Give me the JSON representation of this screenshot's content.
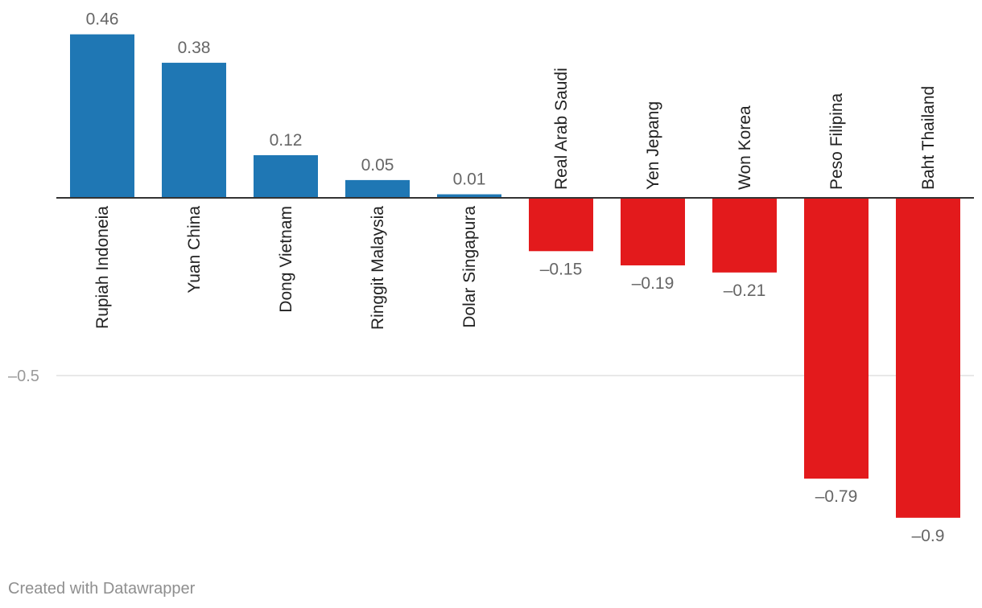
{
  "chart_data": {
    "type": "bar",
    "categories": [
      "Rupiah Indoneia",
      "Yuan China",
      "Dong Vietnam",
      "Ringgit Malaysia",
      "Dolar Singapura",
      "Real Arab Saudi",
      "Yen Jepang",
      "Won Korea",
      "Peso Filipina",
      "Baht Thailand"
    ],
    "values": [
      0.46,
      0.38,
      0.12,
      0.05,
      0.01,
      -0.15,
      -0.19,
      -0.21,
      -0.79,
      -0.9
    ],
    "value_labels": [
      "0.46",
      "0.38",
      "0.12",
      "0.05",
      "0.01",
      "–0.15",
      "–0.19",
      "–0.21",
      "–0.79",
      "–0.9"
    ],
    "ylim": [
      -1.0,
      0.5
    ],
    "yticks": [
      {
        "value": -0.5,
        "label": "–0.5"
      }
    ],
    "grid": true,
    "title": "",
    "xlabel": "",
    "ylabel": "",
    "colors": {
      "positive": "#1f77b4",
      "negative": "#e31a1c",
      "axis": "#333333",
      "grid": "#e0e0e0",
      "value_label": "#666666",
      "category_label": "#222222",
      "tick_label": "#9a9a9a"
    }
  },
  "credit": "Created with Datawrapper"
}
